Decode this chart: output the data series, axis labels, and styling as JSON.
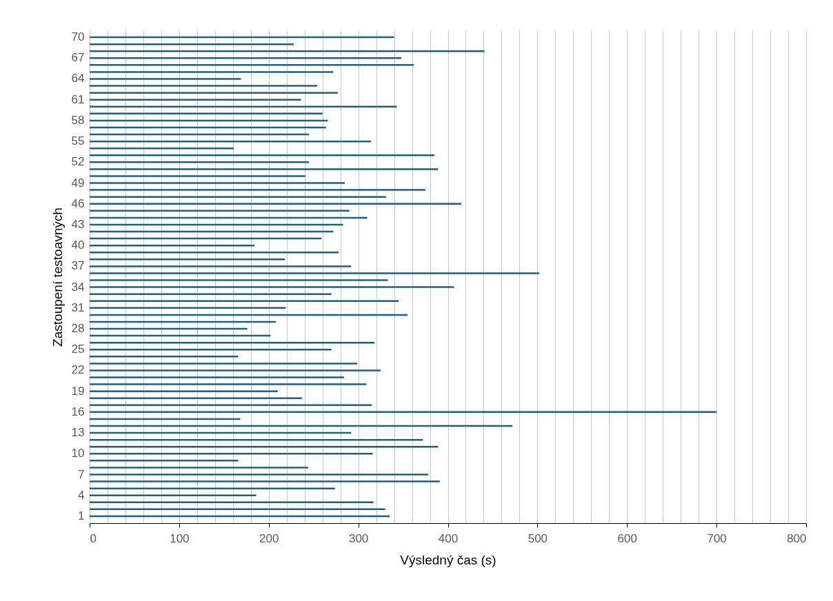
{
  "chart_data": {
    "type": "bar",
    "orientation": "horizontal",
    "xlabel": "Výsledný čas (s)",
    "ylabel": "Zastoupení testoavných",
    "categories": [
      "70",
      null,
      null,
      "67",
      null,
      null,
      "64",
      null,
      null,
      "61",
      null,
      null,
      "58",
      null,
      null,
      "55",
      null,
      null,
      "52",
      null,
      null,
      "49",
      null,
      null,
      "46",
      null,
      null,
      "43",
      null,
      null,
      "40",
      null,
      null,
      "37",
      null,
      null,
      "34",
      null,
      null,
      "31",
      null,
      null,
      "28",
      null,
      null,
      "25",
      null,
      null,
      "22",
      null,
      null,
      "19",
      null,
      null,
      "16",
      null,
      null,
      "13",
      null,
      null,
      "10",
      null,
      null,
      "7",
      null,
      null,
      "4",
      null,
      null,
      "1"
    ],
    "values": [
      340,
      228,
      441,
      348,
      362,
      272,
      169,
      254,
      277,
      236,
      343,
      260,
      266,
      264,
      245,
      314,
      161,
      385,
      245,
      389,
      241,
      285,
      375,
      331,
      415,
      290,
      310,
      283,
      272,
      259,
      184,
      278,
      218,
      292,
      502,
      333,
      407,
      270,
      345,
      219,
      355,
      208,
      176,
      202,
      318,
      270,
      166,
      299,
      325,
      284,
      309,
      210,
      237,
      315,
      700,
      168,
      472,
      292,
      372,
      389,
      316,
      166,
      244,
      378,
      391,
      274,
      186,
      317,
      330,
      335
    ],
    "color": "#1f5f82",
    "xlim": [
      0,
      800
    ],
    "xticks": [
      0,
      {
        "value": 20,
        "label": null
      },
      {
        "value": 40,
        "label": null
      },
      {
        "value": 60,
        "label": null
      },
      {
        "value": 80,
        "label": null
      },
      100,
      {
        "value": 120,
        "label": null
      },
      {
        "value": 140,
        "label": null
      },
      {
        "value": 160,
        "label": null
      },
      {
        "value": 180,
        "label": null
      },
      200,
      {
        "value": 220,
        "label": null
      },
      {
        "value": 240,
        "label": null
      },
      {
        "value": 260,
        "label": null
      },
      {
        "value": 280,
        "label": null
      },
      300,
      {
        "value": 320,
        "label": null
      },
      {
        "value": 340,
        "label": null
      },
      {
        "value": 360,
        "label": null
      },
      {
        "value": 380,
        "label": null
      },
      400,
      {
        "value": 420,
        "label": null
      },
      {
        "value": 440,
        "label": null
      },
      {
        "value": 460,
        "label": null
      },
      {
        "value": 480,
        "label": null
      },
      500,
      {
        "value": 520,
        "label": null
      },
      {
        "value": 540,
        "label": null
      },
      {
        "value": 560,
        "label": null
      },
      {
        "value": 580,
        "label": null
      },
      600,
      {
        "value": 620,
        "label": null
      },
      {
        "value": 640,
        "label": null
      },
      {
        "value": 660,
        "label": null
      },
      {
        "value": 680,
        "label": null
      },
      700,
      {
        "value": 720,
        "label": null
      },
      {
        "value": 740,
        "label": null
      },
      {
        "value": 760,
        "label": null
      },
      {
        "value": 780,
        "label": null
      },
      800
    ],
    "grid": "x"
  }
}
